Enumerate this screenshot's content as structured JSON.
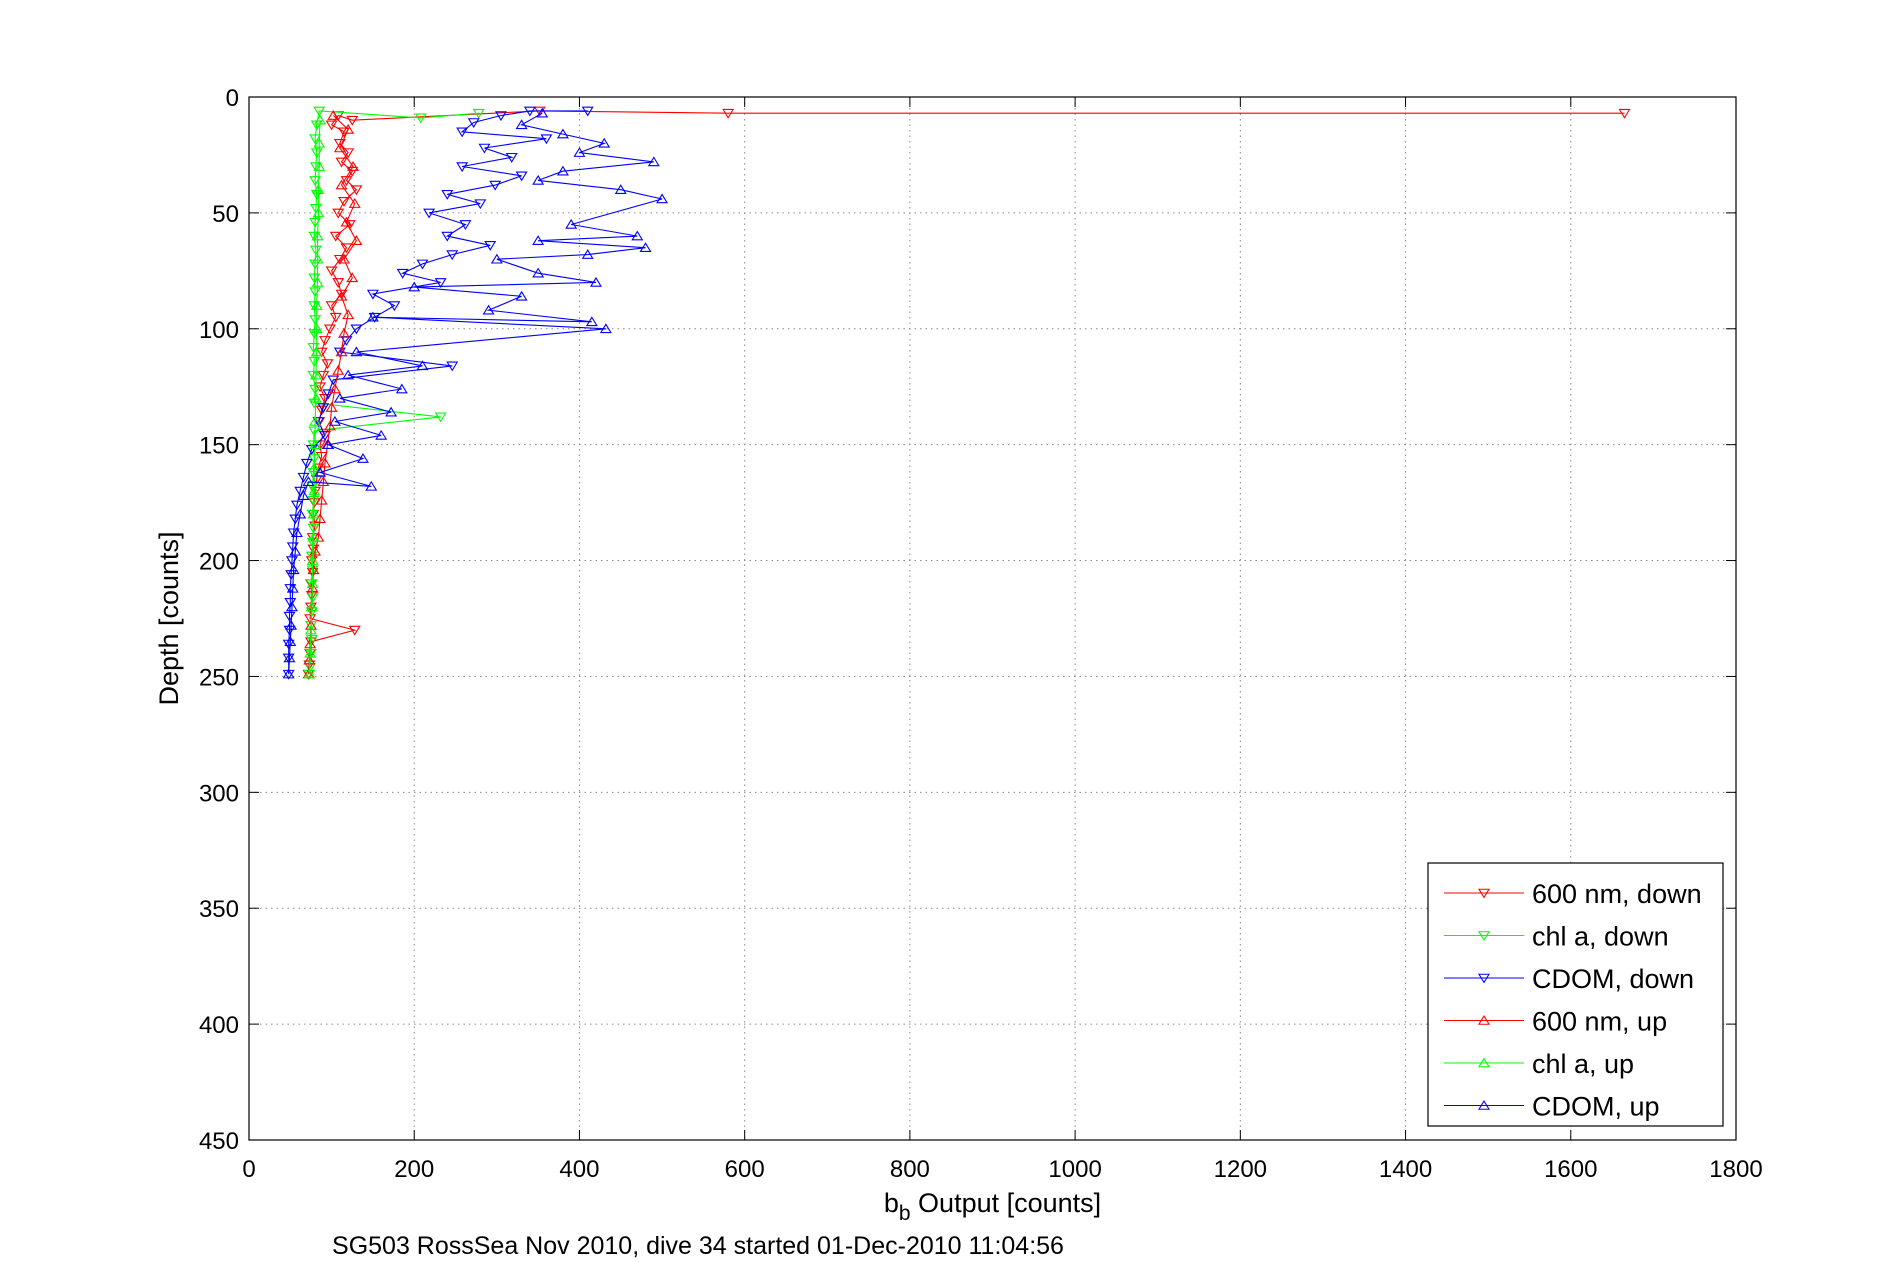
{
  "chart_data": {
    "type": "scatter",
    "xlabel": "b",
    "xlabel_subscript": "b",
    "xlabel_rest": " Output [counts]",
    "ylabel": "Depth [counts]",
    "footer": "SG503 RossSea Nov 2010, dive 34 started 01-Dec-2010 11:04:56",
    "xlim": [
      0,
      1800
    ],
    "ylim": [
      0,
      450
    ],
    "y_reversed": true,
    "grid": true,
    "x_ticks": [
      0,
      200,
      400,
      600,
      800,
      1000,
      1200,
      1400,
      1600,
      1800
    ],
    "y_ticks": [
      0,
      50,
      100,
      150,
      200,
      250,
      300,
      350,
      400,
      450
    ],
    "x_tick_labels": [
      "0",
      "200",
      "400",
      "600",
      "800",
      "1000",
      "1200",
      "1400",
      "1600",
      "1800"
    ],
    "y_tick_labels": [
      "0",
      "50",
      "100",
      "150",
      "200",
      "250",
      "300",
      "350",
      "400",
      "450"
    ],
    "legend_position": "bottom-right",
    "series": [
      {
        "name": "600 nm, down",
        "color": "#ff0000",
        "marker": "triangle-down",
        "points": [
          [
            1665,
            7
          ],
          [
            580,
            7
          ],
          [
            352,
            6
          ],
          [
            125,
            10
          ],
          [
            108,
            8
          ],
          [
            100,
            12
          ],
          [
            115,
            15
          ],
          [
            110,
            20
          ],
          [
            120,
            24
          ],
          [
            112,
            28
          ],
          [
            125,
            32
          ],
          [
            118,
            36
          ],
          [
            130,
            40
          ],
          [
            115,
            45
          ],
          [
            108,
            50
          ],
          [
            122,
            55
          ],
          [
            105,
            60
          ],
          [
            118,
            65
          ],
          [
            110,
            70
          ],
          [
            100,
            75
          ],
          [
            108,
            80
          ],
          [
            112,
            85
          ],
          [
            100,
            90
          ],
          [
            105,
            95
          ],
          [
            98,
            100
          ],
          [
            92,
            105
          ],
          [
            88,
            110
          ],
          [
            95,
            115
          ],
          [
            90,
            120
          ],
          [
            86,
            125
          ],
          [
            92,
            130
          ],
          [
            88,
            135
          ],
          [
            85,
            140
          ],
          [
            90,
            145
          ],
          [
            86,
            150
          ],
          [
            88,
            155
          ],
          [
            84,
            160
          ],
          [
            82,
            165
          ],
          [
            80,
            170
          ],
          [
            79,
            175
          ],
          [
            78,
            180
          ],
          [
            80,
            185
          ],
          [
            77,
            190
          ],
          [
            78,
            195
          ],
          [
            76,
            200
          ],
          [
            77,
            205
          ],
          [
            75,
            210
          ],
          [
            76,
            215
          ],
          [
            75,
            220
          ],
          [
            74,
            225
          ],
          [
            128,
            230
          ],
          [
            75,
            235
          ],
          [
            74,
            240
          ],
          [
            73,
            245
          ],
          [
            72,
            249
          ]
        ]
      },
      {
        "name": "chl a, down",
        "color": "#00ff00",
        "marker": "triangle-down",
        "points": [
          [
            278,
            7
          ],
          [
            208,
            9
          ],
          [
            85,
            6
          ],
          [
            82,
            12
          ],
          [
            80,
            18
          ],
          [
            82,
            24
          ],
          [
            81,
            30
          ],
          [
            80,
            36
          ],
          [
            82,
            42
          ],
          [
            81,
            48
          ],
          [
            80,
            54
          ],
          [
            79,
            60
          ],
          [
            81,
            66
          ],
          [
            80,
            72
          ],
          [
            79,
            78
          ],
          [
            80,
            84
          ],
          [
            79,
            90
          ],
          [
            80,
            96
          ],
          [
            79,
            102
          ],
          [
            78,
            108
          ],
          [
            79,
            114
          ],
          [
            78,
            120
          ],
          [
            80,
            126
          ],
          [
            79,
            132
          ],
          [
            232,
            138
          ],
          [
            79,
            144
          ],
          [
            78,
            150
          ],
          [
            79,
            156
          ],
          [
            78,
            162
          ],
          [
            77,
            168
          ],
          [
            78,
            174
          ],
          [
            77,
            180
          ],
          [
            78,
            186
          ],
          [
            77,
            192
          ],
          [
            76,
            198
          ],
          [
            77,
            204
          ],
          [
            76,
            210
          ],
          [
            77,
            216
          ],
          [
            76,
            222
          ],
          [
            75,
            228
          ],
          [
            76,
            234
          ],
          [
            75,
            240
          ],
          [
            74,
            246
          ],
          [
            73,
            249
          ]
        ]
      },
      {
        "name": "CDOM, down",
        "color": "#0000ff",
        "marker": "triangle-down",
        "points": [
          [
            410,
            6
          ],
          [
            340,
            6
          ],
          [
            305,
            8
          ],
          [
            272,
            11
          ],
          [
            258,
            15
          ],
          [
            360,
            18
          ],
          [
            285,
            22
          ],
          [
            318,
            26
          ],
          [
            258,
            30
          ],
          [
            330,
            34
          ],
          [
            298,
            38
          ],
          [
            240,
            42
          ],
          [
            280,
            46
          ],
          [
            218,
            50
          ],
          [
            262,
            55
          ],
          [
            240,
            60
          ],
          [
            292,
            64
          ],
          [
            246,
            68
          ],
          [
            210,
            72
          ],
          [
            186,
            76
          ],
          [
            232,
            80
          ],
          [
            150,
            85
          ],
          [
            176,
            90
          ],
          [
            152,
            95
          ],
          [
            130,
            100
          ],
          [
            118,
            105
          ],
          [
            110,
            110
          ],
          [
            246,
            116
          ],
          [
            102,
            122
          ],
          [
            96,
            128
          ],
          [
            90,
            134
          ],
          [
            84,
            140
          ],
          [
            92,
            146
          ],
          [
            76,
            152
          ],
          [
            70,
            158
          ],
          [
            66,
            164
          ],
          [
            62,
            170
          ],
          [
            58,
            176
          ],
          [
            56,
            182
          ],
          [
            54,
            188
          ],
          [
            53,
            194
          ],
          [
            52,
            200
          ],
          [
            51,
            206
          ],
          [
            50,
            212
          ],
          [
            50,
            218
          ],
          [
            49,
            224
          ],
          [
            49,
            230
          ],
          [
            48,
            236
          ],
          [
            48,
            242
          ],
          [
            48,
            249
          ]
        ]
      },
      {
        "name": "600 nm, up",
        "color": "#ff0000",
        "marker": "triangle-up",
        "points": [
          [
            72,
            249
          ],
          [
            73,
            243
          ],
          [
            74,
            236
          ],
          [
            75,
            228
          ],
          [
            76,
            220
          ],
          [
            77,
            212
          ],
          [
            78,
            204
          ],
          [
            80,
            196
          ],
          [
            84,
            190
          ],
          [
            86,
            182
          ],
          [
            88,
            174
          ],
          [
            90,
            166
          ],
          [
            92,
            158
          ],
          [
            95,
            150
          ],
          [
            98,
            142
          ],
          [
            100,
            134
          ],
          [
            104,
            126
          ],
          [
            108,
            118
          ],
          [
            112,
            110
          ],
          [
            115,
            102
          ],
          [
            120,
            94
          ],
          [
            112,
            86
          ],
          [
            125,
            78
          ],
          [
            115,
            70
          ],
          [
            130,
            62
          ],
          [
            118,
            54
          ],
          [
            128,
            46
          ],
          [
            112,
            38
          ],
          [
            126,
            30
          ],
          [
            110,
            22
          ],
          [
            120,
            14
          ],
          [
            102,
            8
          ]
        ]
      },
      {
        "name": "chl a, up",
        "color": "#00ff00",
        "marker": "triangle-up",
        "points": [
          [
            73,
            249
          ],
          [
            74,
            240
          ],
          [
            75,
            230
          ],
          [
            76,
            220
          ],
          [
            77,
            210
          ],
          [
            77,
            200
          ],
          [
            78,
            190
          ],
          [
            78,
            180
          ],
          [
            79,
            170
          ],
          [
            79,
            160
          ],
          [
            80,
            150
          ],
          [
            80,
            140
          ],
          [
            81,
            130
          ],
          [
            81,
            120
          ],
          [
            82,
            110
          ],
          [
            82,
            100
          ],
          [
            82,
            90
          ],
          [
            83,
            80
          ],
          [
            83,
            70
          ],
          [
            83,
            60
          ],
          [
            84,
            50
          ],
          [
            84,
            40
          ],
          [
            85,
            30
          ],
          [
            85,
            20
          ],
          [
            86,
            10
          ]
        ]
      },
      {
        "name": "CDOM, up",
        "color": "#0000ff",
        "marker": "triangle-up",
        "points": [
          [
            48,
            249
          ],
          [
            49,
            242
          ],
          [
            50,
            235
          ],
          [
            51,
            228
          ],
          [
            52,
            220
          ],
          [
            53,
            212
          ],
          [
            54,
            204
          ],
          [
            56,
            196
          ],
          [
            58,
            188
          ],
          [
            62,
            180
          ],
          [
            66,
            172
          ],
          [
            72,
            166
          ],
          [
            148,
            168
          ],
          [
            86,
            162
          ],
          [
            138,
            156
          ],
          [
            96,
            150
          ],
          [
            160,
            146
          ],
          [
            104,
            140
          ],
          [
            172,
            136
          ],
          [
            110,
            130
          ],
          [
            185,
            126
          ],
          [
            120,
            120
          ],
          [
            210,
            116
          ],
          [
            130,
            110
          ],
          [
            432,
            100
          ],
          [
            150,
            95
          ],
          [
            415,
            97
          ],
          [
            290,
            92
          ],
          [
            330,
            86
          ],
          [
            200,
            82
          ],
          [
            420,
            80
          ],
          [
            350,
            76
          ],
          [
            300,
            70
          ],
          [
            410,
            68
          ],
          [
            480,
            65
          ],
          [
            350,
            62
          ],
          [
            470,
            60
          ],
          [
            390,
            55
          ],
          [
            500,
            44
          ],
          [
            450,
            40
          ],
          [
            350,
            36
          ],
          [
            380,
            32
          ],
          [
            490,
            28
          ],
          [
            400,
            24
          ],
          [
            430,
            20
          ],
          [
            380,
            16
          ],
          [
            330,
            12
          ],
          [
            355,
            7
          ]
        ]
      }
    ]
  }
}
